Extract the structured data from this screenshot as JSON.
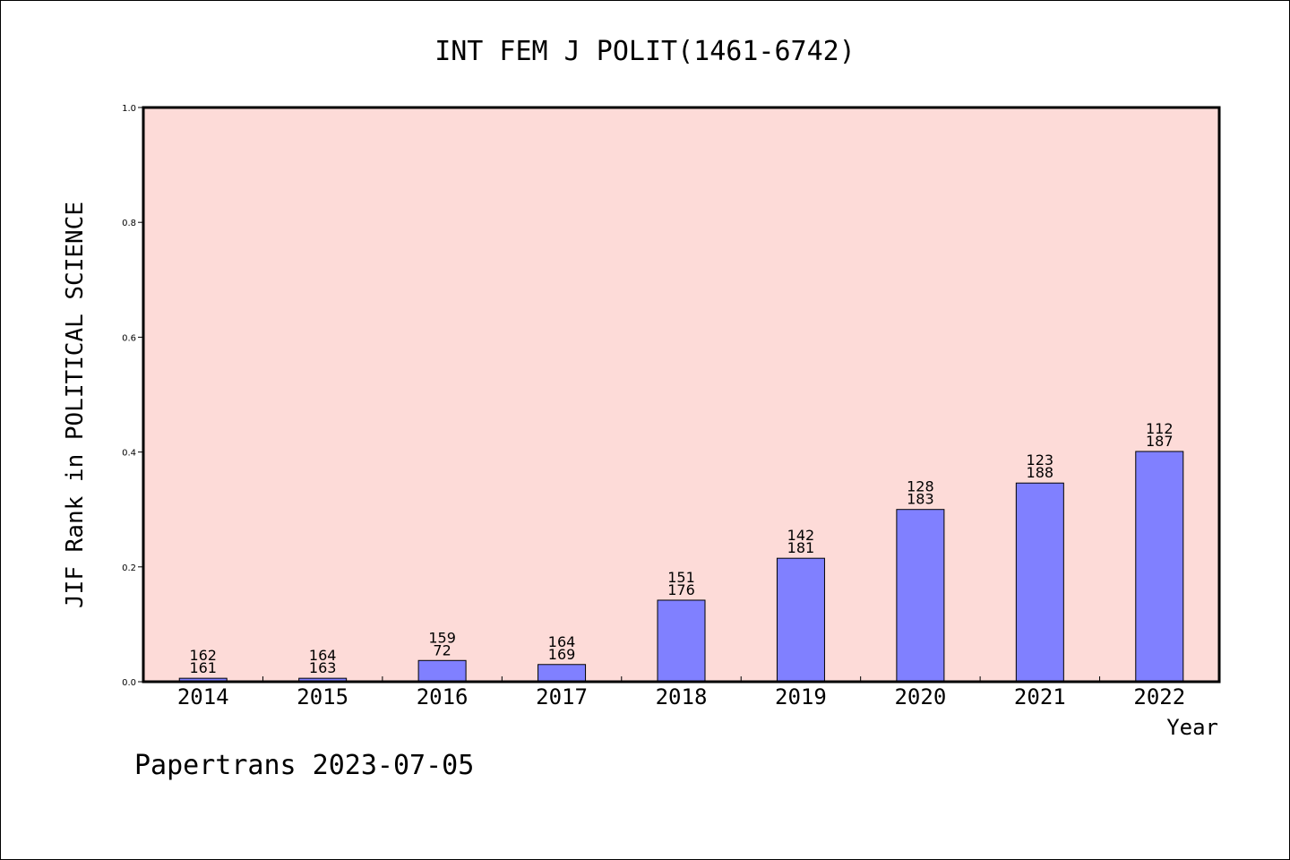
{
  "chart_data": {
    "type": "bar",
    "title": "INT FEM J POLIT(1461-6742)",
    "xlabel": "Year",
    "ylabel": "JIF Rank in POLITICAL SCIENCE",
    "categories": [
      "2014",
      "2015",
      "2016",
      "2017",
      "2018",
      "2019",
      "2020",
      "2021",
      "2022"
    ],
    "values": [
      0.006,
      0.006,
      0.037,
      0.03,
      0.142,
      0.215,
      0.3,
      0.346,
      0.401
    ],
    "bar_labels": [
      {
        "rank": "162",
        "total": "161"
      },
      {
        "rank": "164",
        "total": "163"
      },
      {
        "rank": "159",
        "total": "72"
      },
      {
        "rank": "164",
        "total": "169"
      },
      {
        "rank": "151",
        "total": "176"
      },
      {
        "rank": "142",
        "total": "181"
      },
      {
        "rank": "128",
        "total": "183"
      },
      {
        "rank": "123",
        "total": "188"
      },
      {
        "rank": "112",
        "total": "187"
      }
    ],
    "yticks": [
      "0.0",
      "0.2",
      "0.4",
      "0.6",
      "0.8",
      "1.0"
    ],
    "ylim": [
      0,
      1
    ],
    "grid": false,
    "colors": {
      "plot_background": "#fddbd8",
      "bar_fill": "#8080ff",
      "bar_stroke": "#000000",
      "frame": "#000000"
    }
  },
  "footer": {
    "watermark": "Papertrans 2023-07-05"
  }
}
